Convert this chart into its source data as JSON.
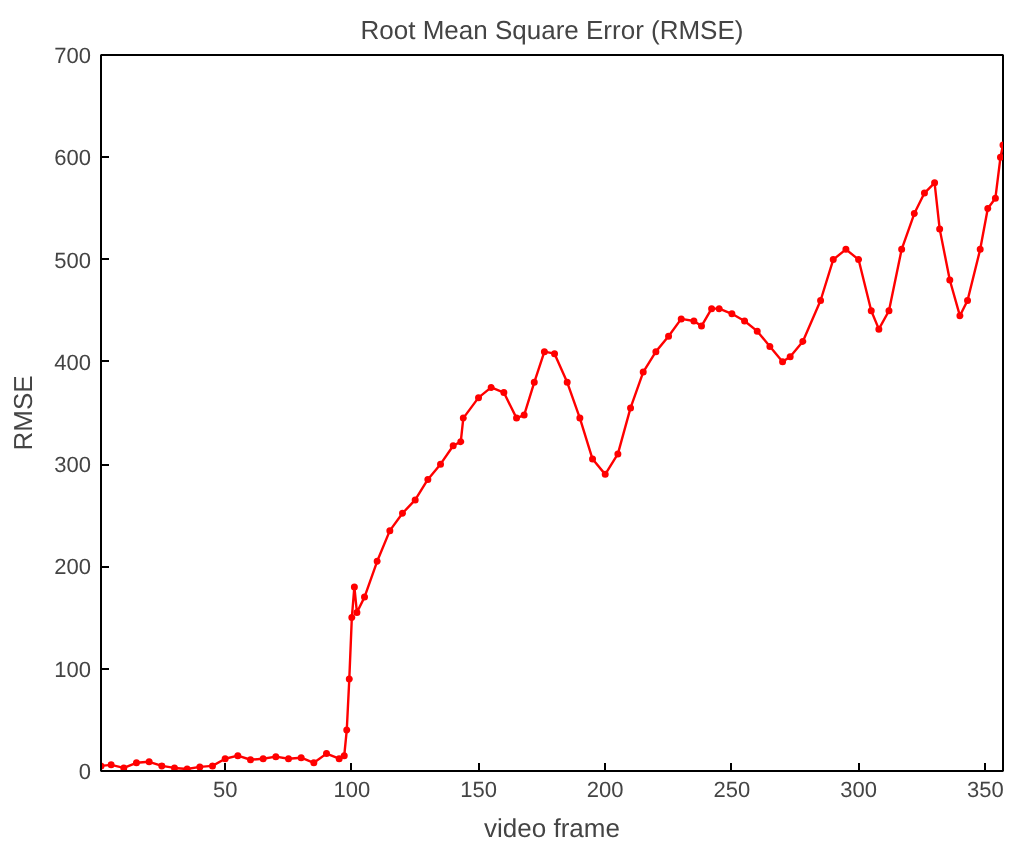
{
  "chart_data": {
    "type": "line",
    "title": "Root Mean Square Error (RMSE)",
    "xlabel": "video frame",
    "ylabel": "RMSE",
    "xlim": [
      1,
      357
    ],
    "ylim": [
      0,
      700
    ],
    "xticks": [
      50,
      100,
      150,
      200,
      250,
      300,
      350
    ],
    "yticks": [
      0,
      100,
      200,
      300,
      400,
      500,
      600,
      700
    ],
    "grid": false,
    "marker": "circle",
    "line_style": "solid",
    "series": [
      {
        "color": "#ff0000",
        "x": [
          1,
          5,
          10,
          15,
          20,
          25,
          30,
          35,
          40,
          45,
          50,
          55,
          60,
          65,
          70,
          75,
          80,
          85,
          90,
          95,
          97,
          98,
          99,
          100,
          101,
          102,
          105,
          110,
          115,
          120,
          125,
          130,
          135,
          140,
          143,
          144,
          150,
          155,
          160,
          165,
          168,
          172,
          176,
          180,
          185,
          190,
          195,
          200,
          205,
          210,
          215,
          220,
          225,
          230,
          235,
          238,
          242,
          245,
          250,
          255,
          260,
          265,
          270,
          273,
          278,
          285,
          290,
          295,
          300,
          305,
          308,
          312,
          317,
          322,
          326,
          330,
          332,
          336,
          340,
          343,
          348,
          351,
          354,
          356,
          357
        ],
        "values": [
          5,
          6,
          3,
          8,
          9,
          5,
          3,
          2,
          4,
          5,
          12,
          15,
          11,
          12,
          14,
          12,
          13,
          8,
          17,
          12,
          15,
          40,
          90,
          150,
          180,
          155,
          170,
          205,
          235,
          252,
          265,
          285,
          300,
          318,
          322,
          345,
          365,
          375,
          370,
          345,
          348,
          380,
          410,
          408,
          380,
          345,
          305,
          290,
          310,
          355,
          390,
          410,
          425,
          442,
          440,
          435,
          452,
          452,
          447,
          440,
          430,
          415,
          400,
          405,
          420,
          460,
          500,
          510,
          500,
          450,
          432,
          450,
          510,
          545,
          565,
          575,
          530,
          480,
          445,
          460,
          510,
          550,
          560,
          600,
          612
        ]
      }
    ]
  }
}
